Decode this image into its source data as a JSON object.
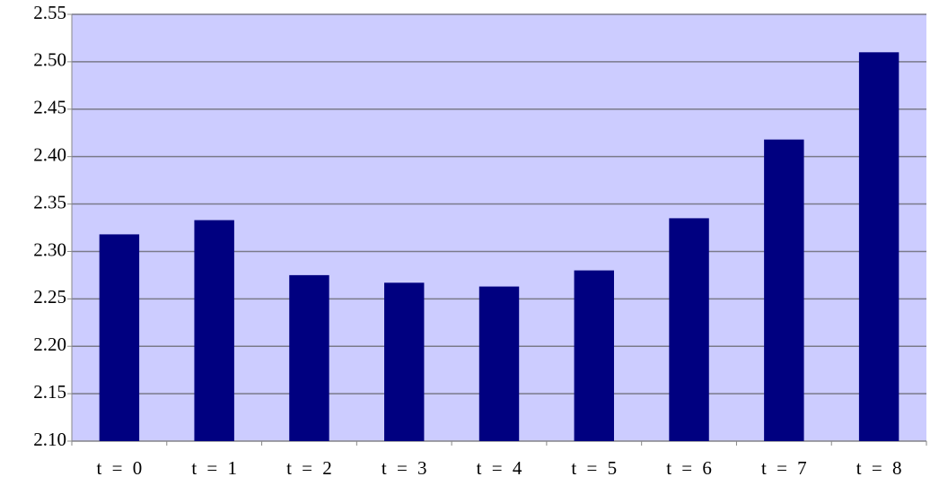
{
  "chart_data": {
    "type": "bar",
    "categories": [
      "t = 0",
      "t = 1",
      "t = 2",
      "t = 3",
      "t = 4",
      "t = 5",
      "t = 6",
      "t = 7",
      "t = 8"
    ],
    "values": [
      2.318,
      2.333,
      2.275,
      2.267,
      2.263,
      2.28,
      2.335,
      2.418,
      2.51
    ],
    "color": "#000080",
    "ylim": [
      2.1,
      2.55
    ],
    "yticks": [
      {
        "value": 2.1,
        "label": "2.10"
      },
      2.15,
      {
        "value": 2.2,
        "label": "2.20"
      },
      2.25,
      {
        "value": 2.3,
        "label": "2.30"
      },
      2.35,
      {
        "value": 2.4,
        "label": "2.40"
      },
      2.45,
      {
        "value": 2.5,
        "label": "2.50"
      },
      2.55
    ],
    "grid": true
  }
}
